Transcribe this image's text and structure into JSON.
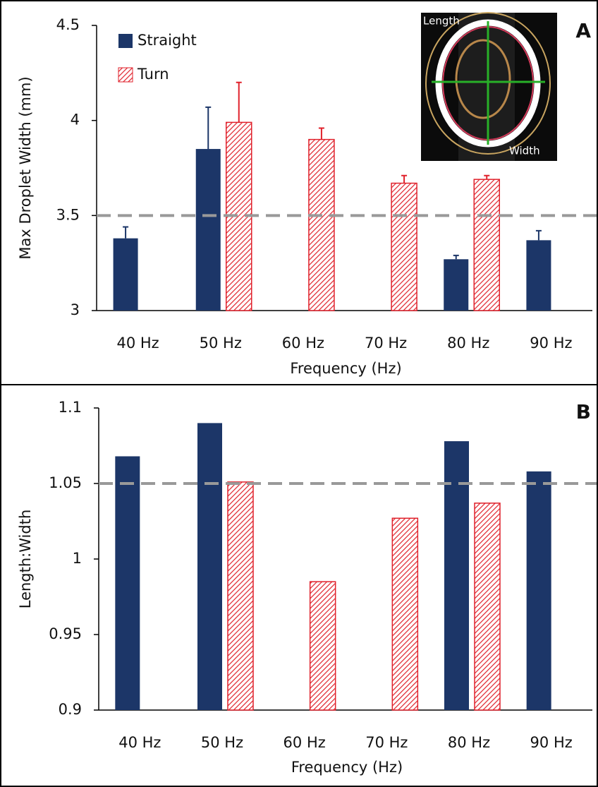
{
  "chart_data": [
    {
      "type": "bar",
      "panel_label": "A",
      "y_label": "Max Droplet Width (mm)",
      "x_label": "Frequency (Hz)",
      "categories": [
        "40 Hz",
        "50 Hz",
        "60 Hz",
        "70 Hz",
        "80 Hz",
        "90 Hz"
      ],
      "series": [
        {
          "name": "Straight",
          "color": "#1c3668",
          "pattern": "solid",
          "values": [
            3.38,
            3.85,
            null,
            null,
            3.27,
            3.37
          ],
          "errors": [
            0.06,
            0.22,
            null,
            null,
            0.02,
            0.05
          ]
        },
        {
          "name": "Turn",
          "color": "#e0212b",
          "pattern": "hatch",
          "values": [
            null,
            3.99,
            3.9,
            3.67,
            3.69,
            null
          ],
          "errors": [
            null,
            0.21,
            0.06,
            0.04,
            0.02,
            null
          ]
        }
      ],
      "ylim": [
        3,
        4.5
      ],
      "yticks": [
        3,
        3.5,
        4,
        4.5
      ],
      "reference_line": 3.5,
      "legend": "top-left",
      "inset_labels": [
        "Length",
        "Width"
      ]
    },
    {
      "type": "bar",
      "panel_label": "B",
      "y_label": "Length:Width",
      "x_label": "Frequency (Hz)",
      "categories": [
        "40 Hz",
        "50 Hz",
        "60 Hz",
        "70 Hz",
        "80 Hz",
        "90 Hz"
      ],
      "series": [
        {
          "name": "Straight",
          "color": "#1c3668",
          "pattern": "solid",
          "values": [
            1.068,
            1.09,
            null,
            null,
            1.078,
            1.058
          ]
        },
        {
          "name": "Turn",
          "color": "#e0212b",
          "pattern": "hatch",
          "values": [
            null,
            1.051,
            0.985,
            1.027,
            1.037,
            null
          ]
        }
      ],
      "ylim": [
        0.9,
        1.1
      ],
      "yticks": [
        0.9,
        0.95,
        1,
        1.05,
        1.1
      ],
      "reference_line": 1.05
    }
  ]
}
